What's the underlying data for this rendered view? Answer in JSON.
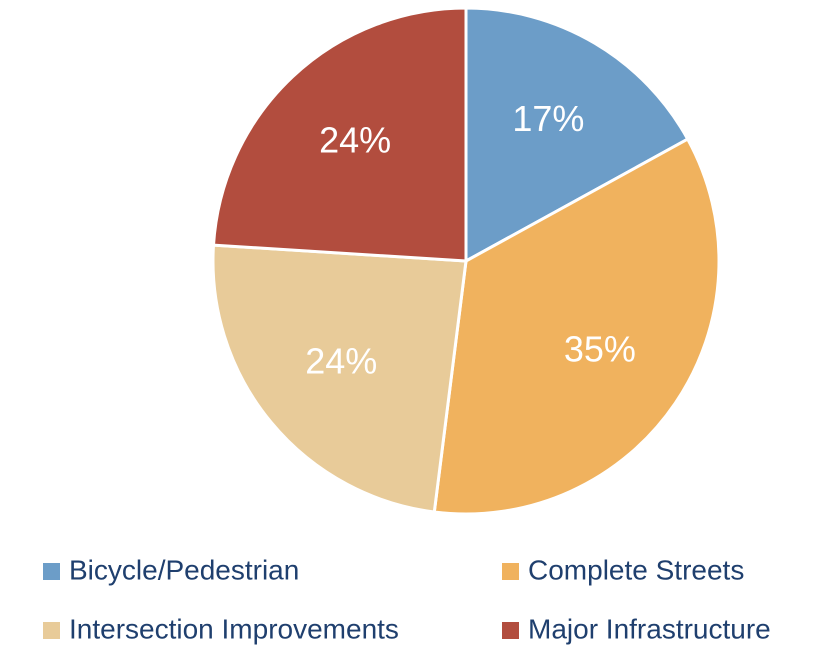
{
  "chart_data": {
    "type": "pie",
    "categories": [
      "Bicycle/Pedestrian",
      "Complete Streets",
      "Intersection Improvements",
      "Major Infrastructure"
    ],
    "values": [
      17,
      35,
      24,
      24
    ],
    "value_labels": [
      "17%",
      "35%",
      "24%",
      "24%"
    ],
    "colors": [
      "#6c9dc8",
      "#f0b25e",
      "#e8cb99",
      "#b24d3e"
    ],
    "legend": "bottom"
  }
}
